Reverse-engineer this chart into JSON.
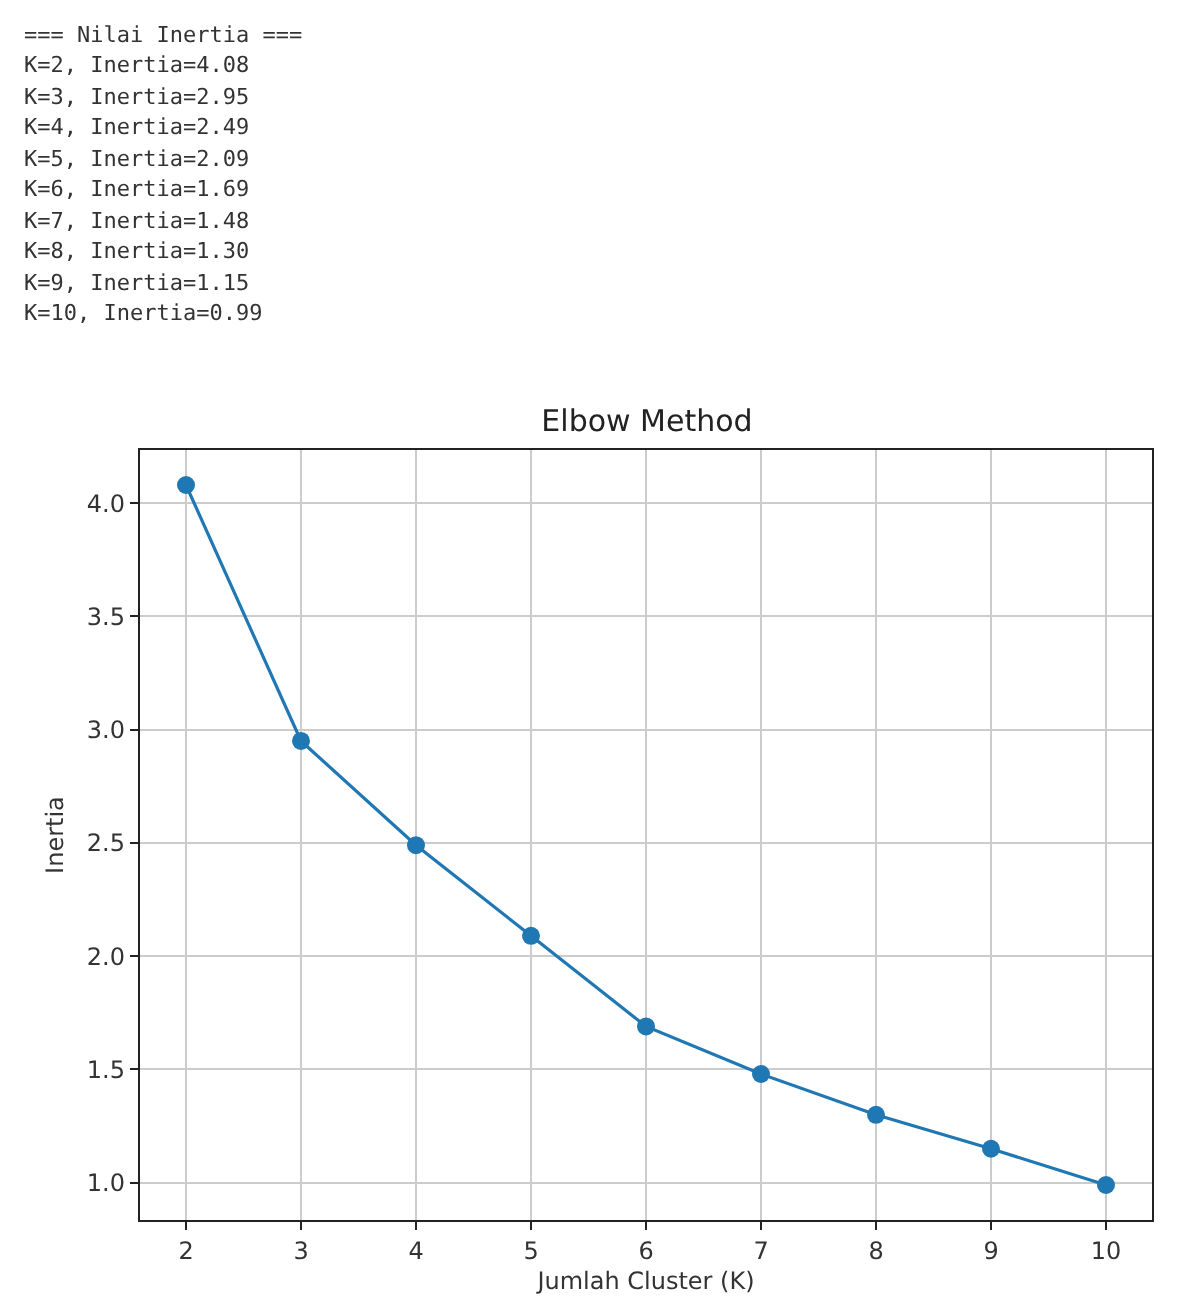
{
  "chart_data": {
    "type": "line",
    "title": "Elbow Method",
    "xlabel": "Jumlah Cluster (K)",
    "ylabel": "Inertia",
    "annotations": [
      "=== Nilai Inertia ===",
      "K=2, Inertia=4.08",
      "K=3, Inertia=2.95",
      "K=4, Inertia=2.49",
      "K=5, Inertia=2.09",
      "K=6, Inertia=1.69",
      "K=7, Inertia=1.48",
      "K=8, Inertia=1.30",
      "K=9, Inertia=1.15",
      "K=10, Inertia=0.99"
    ],
    "x": [
      2,
      3,
      4,
      5,
      6,
      7,
      8,
      9,
      10
    ],
    "series": [
      {
        "color": "#1f77b4",
        "values": [
          4.08,
          2.95,
          2.49,
          2.09,
          1.69,
          1.48,
          1.3,
          1.15,
          0.99
        ]
      }
    ],
    "xlim": [
      1.6,
      10.4
    ],
    "xticks": [
      2,
      3,
      4,
      5,
      6,
      7,
      8,
      9,
      10
    ],
    "ylim": [
      0.8355,
      4.2345
    ],
    "yticks": [
      {
        "value": 1.0,
        "label": "1.0"
      },
      {
        "value": 1.5,
        "label": "1.5"
      },
      {
        "value": 2.0,
        "label": "2.0"
      },
      {
        "value": 2.5,
        "label": "2.5"
      },
      {
        "value": 3.0,
        "label": "3.0"
      },
      {
        "value": 3.5,
        "label": "3.5"
      },
      {
        "value": 4.0,
        "label": "4.0"
      }
    ],
    "grid": true,
    "marker": "circle",
    "line_style": "solid"
  }
}
